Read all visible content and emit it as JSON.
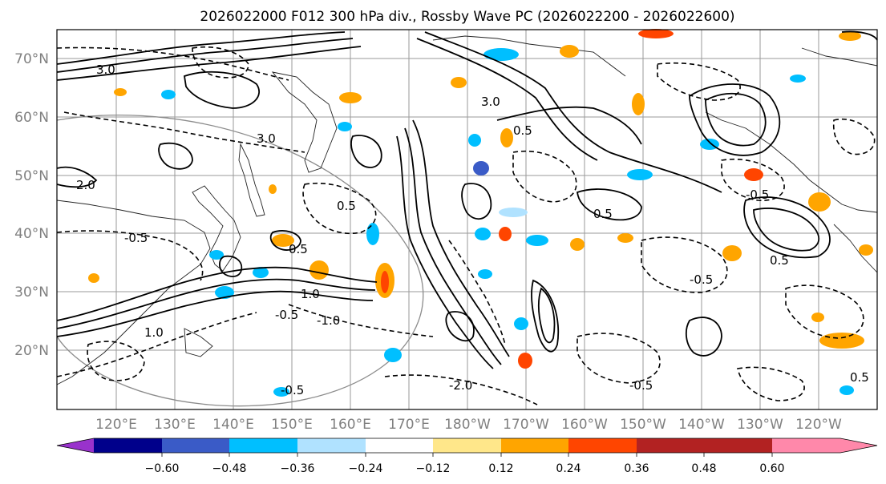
{
  "title": "2026022000 F012 300 hPa div., Rossby Wave PC (2026022200 - 2026022600)",
  "lat_labels": [
    "70°N",
    "60°N",
    "50°N",
    "40°N",
    "30°N",
    "20°N"
  ],
  "lon_labels": [
    "120°E",
    "130°E",
    "140°E",
    "150°E",
    "160°E",
    "170°E",
    "180°W",
    "170°W",
    "160°W",
    "150°W",
    "140°W",
    "130°W",
    "120°W"
  ],
  "contour_labels": [
    "3.0",
    "3.0",
    "-0.5",
    "0.5",
    "-1.0",
    "1.0",
    "-0.5",
    "0.5",
    "-2.0",
    "-0.5",
    "-0.5",
    "3.0",
    "0.5",
    "-0.5",
    "0.5",
    "1.0",
    "-0.5",
    "0.5",
    "2.0",
    "0.5"
  ],
  "colorbar": {
    "colors": [
      "#9932cc",
      "#00008b",
      "#3a5bc7",
      "#00bfff",
      "#b0e2ff",
      "#ffffff",
      "#ffe78a",
      "#ffa500",
      "#ff4500",
      "#b22222",
      "#ff88aa"
    ],
    "tick_labels": [
      "−0.60",
      "−0.48",
      "−0.36",
      "−0.24",
      "−0.12",
      "0.12",
      "0.24",
      "0.36",
      "0.48",
      "0.60"
    ]
  }
}
